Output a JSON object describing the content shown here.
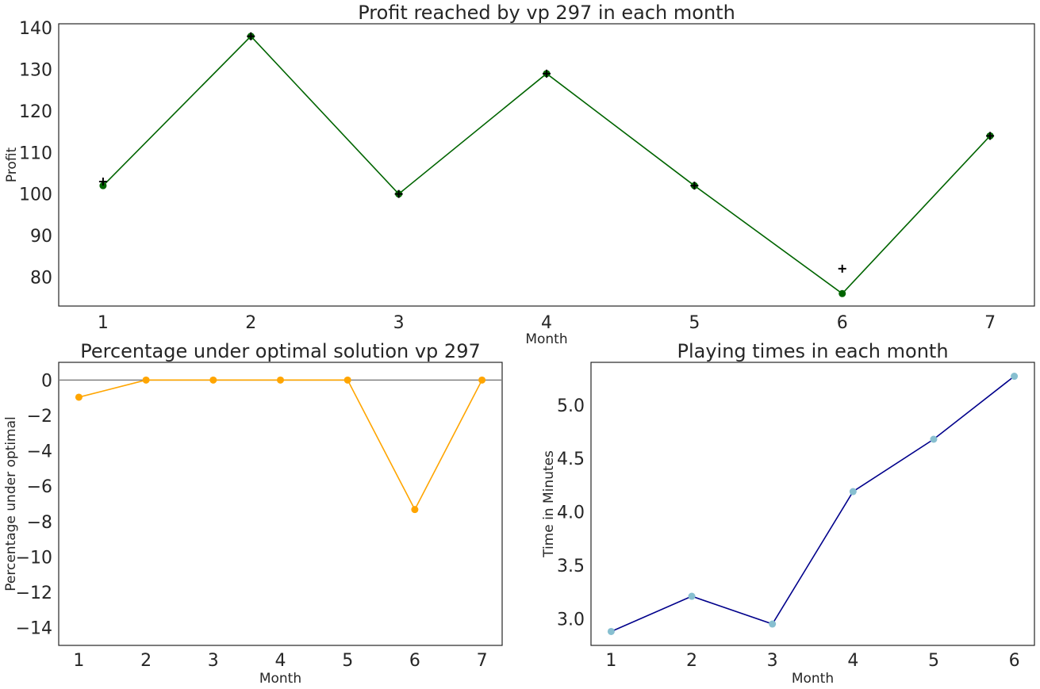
{
  "chart_data": [
    {
      "type": "line",
      "title": "Profit reached by vp 297 in each month",
      "xlabel": "Month",
      "ylabel": "Profit",
      "x": [
        1,
        2,
        3,
        4,
        5,
        6,
        7
      ],
      "xlim": [
        0.7,
        7.3
      ],
      "ylim": [
        73,
        141
      ],
      "xticks": [
        1,
        2,
        3,
        4,
        5,
        6,
        7
      ],
      "yticks": [
        80,
        90,
        100,
        110,
        120,
        130,
        140
      ],
      "grid": false,
      "series": [
        {
          "values": [
            102,
            138,
            100,
            129,
            102,
            76,
            114
          ],
          "color": "#006400",
          "style": "line+dot"
        },
        {
          "values": [
            103,
            138,
            100,
            129,
            102,
            82,
            114
          ],
          "color": "#000000",
          "style": "plus"
        }
      ]
    },
    {
      "type": "line",
      "title": "Percentage under optimal solution vp 297",
      "xlabel": "Month",
      "ylabel": "Percentage under optimal",
      "x": [
        1,
        2,
        3,
        4,
        5,
        6,
        7
      ],
      "xlim": [
        0.7,
        7.3
      ],
      "ylim": [
        -15,
        1
      ],
      "xticks": [
        1,
        2,
        3,
        4,
        5,
        6,
        7
      ],
      "yticks": [
        0,
        -2,
        -4,
        -6,
        -8,
        -10,
        -12,
        -14
      ],
      "reference_line": {
        "y": 0,
        "color": "#808080"
      },
      "grid": false,
      "series": [
        {
          "values": [
            -0.97,
            0,
            0,
            0,
            0,
            -7.32,
            0
          ],
          "color": "#FFA500",
          "style": "line+dot"
        }
      ]
    },
    {
      "type": "line",
      "title": "Playing times in each month",
      "xlabel": "Month",
      "ylabel": "Time in Minutes",
      "x": [
        1,
        2,
        3,
        4,
        5,
        6
      ],
      "xlim": [
        0.75,
        6.25
      ],
      "ylim": [
        2.75,
        5.4
      ],
      "xticks": [
        1,
        2,
        3,
        4,
        5,
        6
      ],
      "yticks": [
        3.0,
        3.5,
        4.0,
        4.5,
        5.0
      ],
      "ytick_format": 1,
      "grid": false,
      "series": [
        {
          "values": [
            2.88,
            3.21,
            2.95,
            4.19,
            4.68,
            5.27
          ],
          "color": "#00008B",
          "marker_color": "#87BFD0",
          "style": "line+dot"
        }
      ]
    }
  ]
}
